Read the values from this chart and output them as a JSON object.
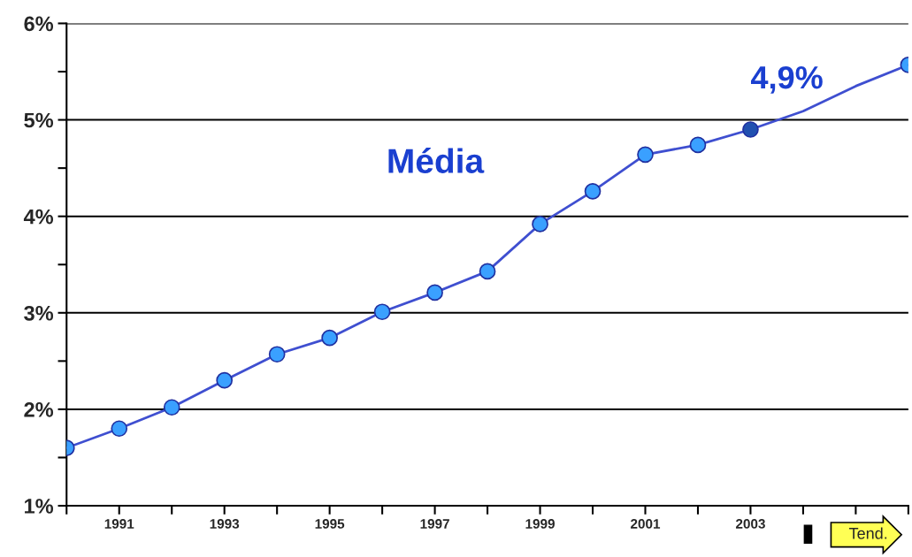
{
  "chart_data": {
    "type": "line",
    "series": [
      {
        "x": [
          1990,
          1991,
          1992,
          1993,
          1994,
          1995,
          1996,
          1997,
          1998,
          1999,
          2000,
          2001,
          2002,
          2003
        ],
        "values": [
          1.6,
          1.8,
          2.02,
          2.3,
          2.57,
          2.74,
          3.01,
          3.21,
          3.43,
          3.92,
          4.26,
          4.64,
          4.74,
          4.9
        ],
        "color": "#3f4fd0",
        "colors": [
          "#3aa0ff",
          "#3aa0ff",
          "#3aa0ff",
          "#3aa0ff",
          "#3aa0ff",
          "#3aa0ff",
          "#3aa0ff",
          "#3aa0ff",
          "#3aa0ff",
          "#3aa0ff",
          "#3aa0ff",
          "#3aa0ff",
          "#3aa0ff",
          "#2050b0"
        ],
        "marker": "circle"
      },
      {
        "x": [
          2003,
          2004,
          2005,
          2006
        ],
        "values": [
          4.9,
          5.09,
          5.35,
          5.57
        ],
        "color": "#3f4fd0",
        "marker": "none"
      },
      {
        "type": "scatter",
        "x": [
          2006
        ],
        "values": [
          5.57
        ],
        "color": "#3aa0ff",
        "marker": "circle"
      }
    ],
    "xlim": [
      1990,
      2006
    ],
    "xticks": [
      {
        "value": 1990,
        "label": null
      },
      1991,
      {
        "value": 1992,
        "label": null
      },
      1993,
      {
        "value": 1994,
        "label": null
      },
      1995,
      {
        "value": 1996,
        "label": null
      },
      1997,
      {
        "value": 1998,
        "label": null
      },
      1999,
      {
        "value": 2000,
        "label": null
      },
      2001,
      {
        "value": 2002,
        "label": null
      },
      2003,
      {
        "value": 2004,
        "label": null
      },
      {
        "value": 2005,
        "label": null
      },
      {
        "value": 2006,
        "label": null
      }
    ],
    "ylim": [
      1,
      6
    ],
    "yticks": [
      {
        "value": 1,
        "label": "1%"
      },
      {
        "value": 1.5,
        "label": null
      },
      {
        "value": 2,
        "label": "2%"
      },
      {
        "value": 2.5,
        "label": null
      },
      {
        "value": 3,
        "label": "3%"
      },
      {
        "value": 3.5,
        "label": null
      },
      {
        "value": 4,
        "label": "4%"
      },
      {
        "value": 4.5,
        "label": null
      },
      {
        "value": 5,
        "label": "5%"
      },
      {
        "value": 5.5,
        "label": null
      },
      {
        "value": 6,
        "label": "6%"
      }
    ],
    "grid": "y",
    "annotations": [
      "Média",
      {
        "text": "4,9%",
        "x": 2003,
        "y": 4.9
      },
      "Tend."
    ]
  }
}
